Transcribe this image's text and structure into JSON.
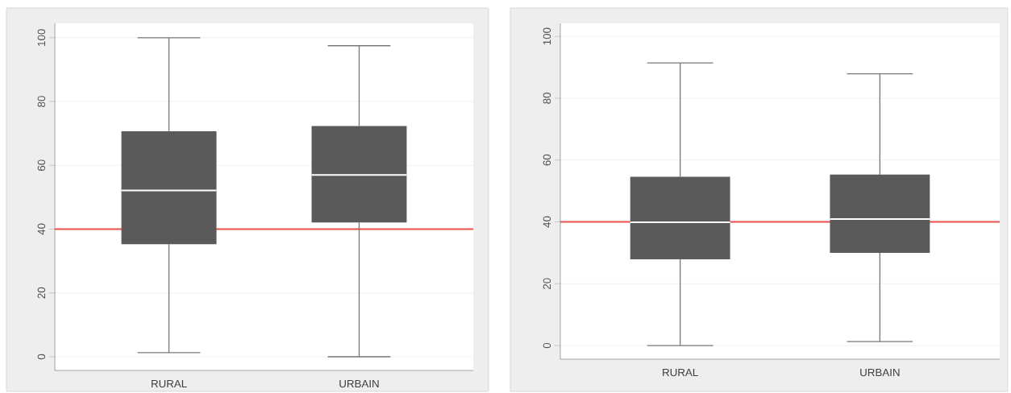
{
  "chart_data": [
    {
      "type": "box",
      "categories": [
        "RURAL",
        "URBAIN"
      ],
      "color": "#5a5a5a",
      "boxes": [
        {
          "low": 1.3,
          "q1": 35.3,
          "median": 52.1,
          "q3": 70.7,
          "high": 100
        },
        {
          "low": 0,
          "q1": 42.1,
          "median": 57.0,
          "q3": 72.3,
          "high": 97.5
        }
      ],
      "ylim": [
        -4.3,
        104.5
      ],
      "yticks": [
        0,
        20,
        40,
        60,
        80,
        100
      ],
      "grid": "y",
      "ref_lines": [
        {
          "axis": "y",
          "value": 40,
          "color": "#e8514a"
        }
      ]
    },
    {
      "type": "box",
      "categories": [
        "RURAL",
        "URBAIN"
      ],
      "color": "#5a5a5a",
      "boxes": [
        {
          "low": 0,
          "q1": 27.9,
          "median": 39.9,
          "q3": 54.6,
          "high": 91.4
        },
        {
          "low": 1.3,
          "q1": 30.0,
          "median": 40.9,
          "q3": 55.3,
          "high": 87.9
        }
      ],
      "ylim": [
        -4.4,
        104.2
      ],
      "yticks": [
        0,
        20,
        40,
        60,
        80,
        100
      ],
      "grid": "y",
      "ref_lines": [
        {
          "axis": "y",
          "value": 40,
          "color": "#e8514a"
        }
      ]
    }
  ]
}
